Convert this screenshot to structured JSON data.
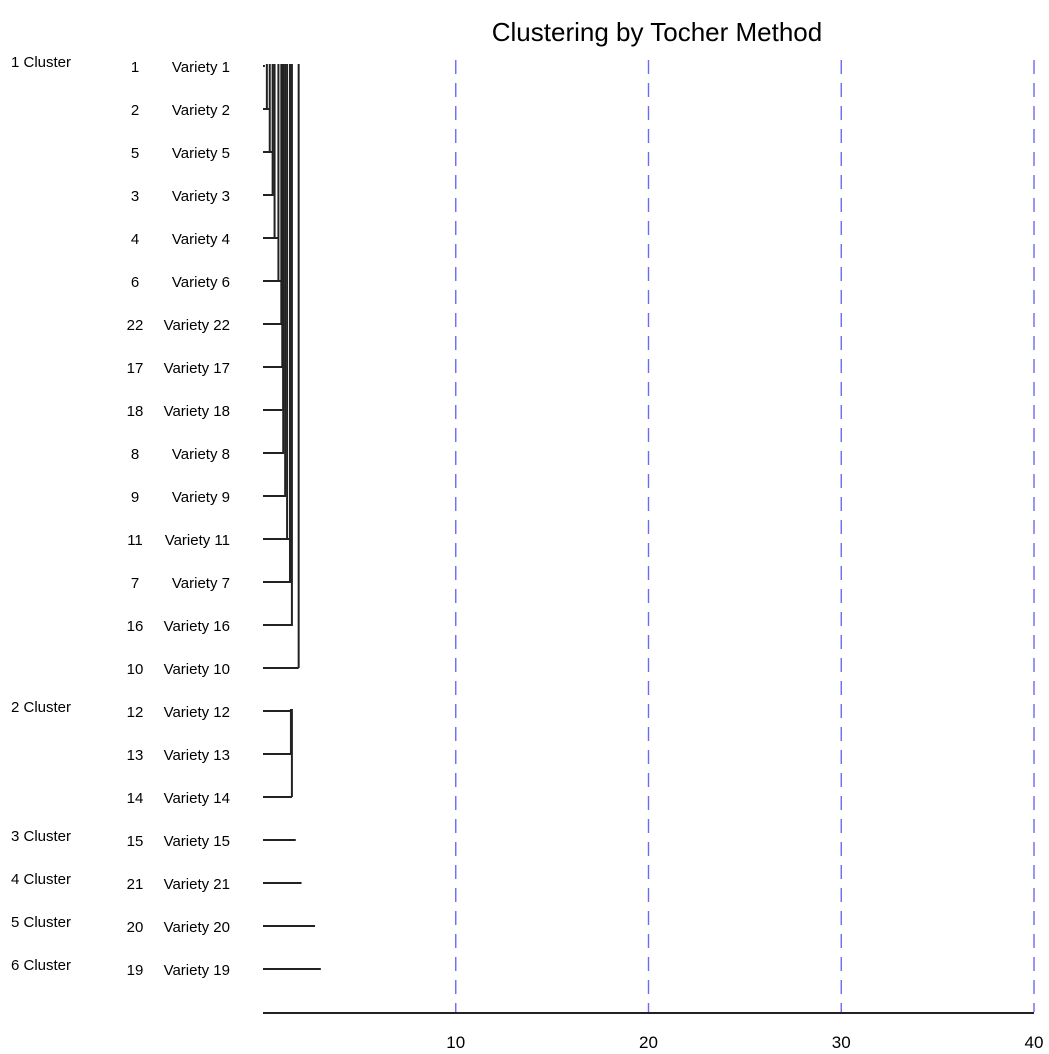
{
  "chart_data": {
    "type": "dendrogram",
    "title": "Clustering by Tocher Method",
    "xlim": [
      0,
      40
    ],
    "x_ticks": [
      "10",
      "20",
      "30",
      "40"
    ],
    "gridlines": {
      "values": [
        10,
        20,
        30,
        40
      ],
      "style": "dashed",
      "color": "#6b6bf0"
    },
    "clusters": [
      {
        "label": "1 Cluster",
        "items": [
          {
            "id": "1",
            "name": "Variety 1",
            "height": 0.1
          },
          {
            "id": "2",
            "name": "Variety 2",
            "height": 0.35
          },
          {
            "id": "5",
            "name": "Variety 5",
            "height": 0.5
          },
          {
            "id": "3",
            "name": "Variety 3",
            "height": 0.55
          },
          {
            "id": "4",
            "name": "Variety 4",
            "height": 0.8
          },
          {
            "id": "6",
            "name": "Variety 6",
            "height": 0.95
          },
          {
            "id": "22",
            "name": "Variety 22",
            "height": 1.0
          },
          {
            "id": "17",
            "name": "Variety 17",
            "height": 1.0
          },
          {
            "id": "18",
            "name": "Variety 18",
            "height": 1.0
          },
          {
            "id": "8",
            "name": "Variety 8",
            "height": 1.1
          },
          {
            "id": "9",
            "name": "Variety 9",
            "height": 1.2
          },
          {
            "id": "11",
            "name": "Variety 11",
            "height": 1.35
          },
          {
            "id": "7",
            "name": "Variety 7",
            "height": 1.5
          },
          {
            "id": "16",
            "name": "Variety 16",
            "height": 1.55
          },
          {
            "id": "10",
            "name": "Variety 10",
            "height": 1.85
          }
        ],
        "merge_heights": [
          0.2,
          0.35,
          0.5,
          0.6,
          0.8,
          0.95,
          1.0,
          1.05,
          1.05,
          1.15,
          1.25,
          1.4,
          1.5,
          1.85
        ]
      },
      {
        "label": "2 Cluster",
        "items": [
          {
            "id": "12",
            "name": "Variety 12",
            "height": 1.5
          },
          {
            "id": "13",
            "name": "Variety 13",
            "height": 1.5
          },
          {
            "id": "14",
            "name": "Variety 14",
            "height": 1.5
          }
        ],
        "merge_heights": [
          1.45,
          1.5
        ]
      },
      {
        "label": "3 Cluster",
        "items": [
          {
            "id": "15",
            "name": "Variety 15",
            "height": 1.7
          }
        ],
        "merge_heights": []
      },
      {
        "label": "4 Cluster",
        "items": [
          {
            "id": "21",
            "name": "Variety 21",
            "height": 2.0
          }
        ],
        "merge_heights": []
      },
      {
        "label": "5 Cluster",
        "items": [
          {
            "id": "20",
            "name": "Variety 20",
            "height": 2.7
          }
        ],
        "merge_heights": []
      },
      {
        "label": "6 Cluster",
        "items": [
          {
            "id": "19",
            "name": "Variety 19",
            "height": 3.0
          }
        ],
        "merge_heights": []
      }
    ]
  }
}
